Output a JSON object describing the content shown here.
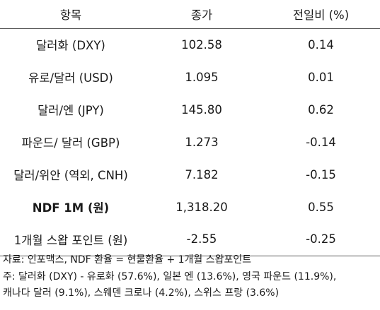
{
  "table": {
    "headers": [
      "항목",
      "종가",
      "전일비 (%)"
    ],
    "rows": [
      {
        "name": "달러화 (DXY)",
        "close": "102.58",
        "change": "0.14",
        "bold": false
      },
      {
        "name": "유로/달러 (USD)",
        "close": "1.095",
        "change": "0.01",
        "bold": false
      },
      {
        "name": "달러/엔 (JPY)",
        "close": "145.80",
        "change": "0.62",
        "bold": false
      },
      {
        "name": "파운드/ 달러 (GBP)",
        "close": "1.273",
        "change": "-0.14",
        "bold": false
      },
      {
        "name": "달러/위안 (역외, CNH)",
        "close": "7.182",
        "change": "-0.15",
        "bold": false
      },
      {
        "name": "NDF 1M (원)",
        "close": "1,318.20",
        "change": "0.55",
        "bold": true
      },
      {
        "name": "1개월 스왑 포인트 (원)",
        "close": "-2.55",
        "change": "-0.25",
        "bold": false
      }
    ]
  },
  "notes": {
    "source": "자료: 인포맥스, NDF 환율 = 현물환율 + 1개월 스왑포인트",
    "note_line1": "주: 달러화 (DXY) - 유로화 (57.6%), 일본 엔 (13.6%), 영국 파운드 (11.9%),",
    "note_line2": "캐나다 달러 (9.1%), 스웨덴 크로나 (4.2%), 스위스 프랑 (3.6%)"
  }
}
